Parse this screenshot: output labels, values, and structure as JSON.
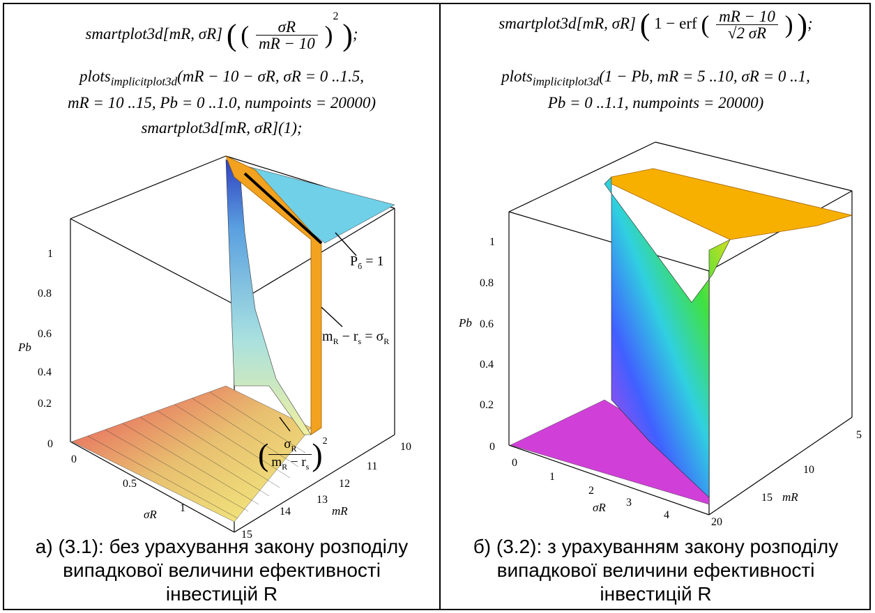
{
  "left": {
    "code_l1_pre": "smartplot3d[mR, σR]",
    "code_l1_num": "σR",
    "code_l1_den": "mR − 10",
    "code_l1_exp": "2",
    "code_l2": "plots",
    "code_l2_sub": "implicitplot3d",
    "code_l2_rest": "(mR − 10 − σR, σR = 0 ..1.5,",
    "code_l3": "mR = 10 ..15, Pb = 0 ..1.0, numpoints = 20000)",
    "code_l4": "smartplot3d[mR, σR](1);",
    "caption_l1": "а) (3.1): без урахування закону розподілу",
    "caption_l2": "випадкової величини ефективності",
    "caption_l3": "інвестицій  R",
    "annot_pb": "P",
    "annot_pb_sub": "б",
    "annot_pb_eq": " = 1",
    "annot_mr": "m",
    "annot_mr_rest": "R",
    "annot_mr_eq": " − r",
    "annot_mr_s": "s",
    "annot_mr_eq2": " = σ",
    "annot_mr_r2": "R",
    "annot_frac_num": "σ",
    "annot_frac_num_sub": "R",
    "annot_frac_den": "m",
    "annot_frac_den_sub": "R",
    "annot_frac_den_rest": " − r",
    "annot_frac_den_s": "s",
    "annot_frac_exp": "2",
    "z_label": "Pb",
    "z_ticks": [
      "0",
      "0.2",
      "0.4",
      "0.6",
      "0.8",
      "1"
    ],
    "x_label": "σR",
    "x_ticks": [
      "0",
      "0.5",
      "1"
    ],
    "y_label": "mR",
    "y_ticks": [
      "10",
      "11",
      "12",
      "13",
      "14",
      "15"
    ]
  },
  "right": {
    "code_l1_pre": "smartplot3d[mR, σR]",
    "code_l1_one": "1 − erf",
    "code_l1_num": "mR − 10",
    "code_l1_den": "√2 σR",
    "code_l2": "plots",
    "code_l2_sub": "implicitplot3d",
    "code_l2_rest": "(1 − Pb, mR = 5 ..10, σR = 0 ..1,",
    "code_l3": "Pb = 0 ..1.1, numpoints = 20000)",
    "caption_l1": "б) (3.2): з урахуванням закону розподілу",
    "caption_l2": "випадкової величини ефективності",
    "caption_l3": "інвестицій  R",
    "z_label": "Pb",
    "z_ticks": [
      "0",
      "0.2",
      "0.4",
      "0.6",
      "0.8",
      "1"
    ],
    "x_label": "σR",
    "x_ticks": [
      "0",
      "1",
      "2",
      "3",
      "4"
    ],
    "y_label": "mR",
    "y_ticks": [
      "5",
      "10",
      "15",
      "20"
    ]
  }
}
